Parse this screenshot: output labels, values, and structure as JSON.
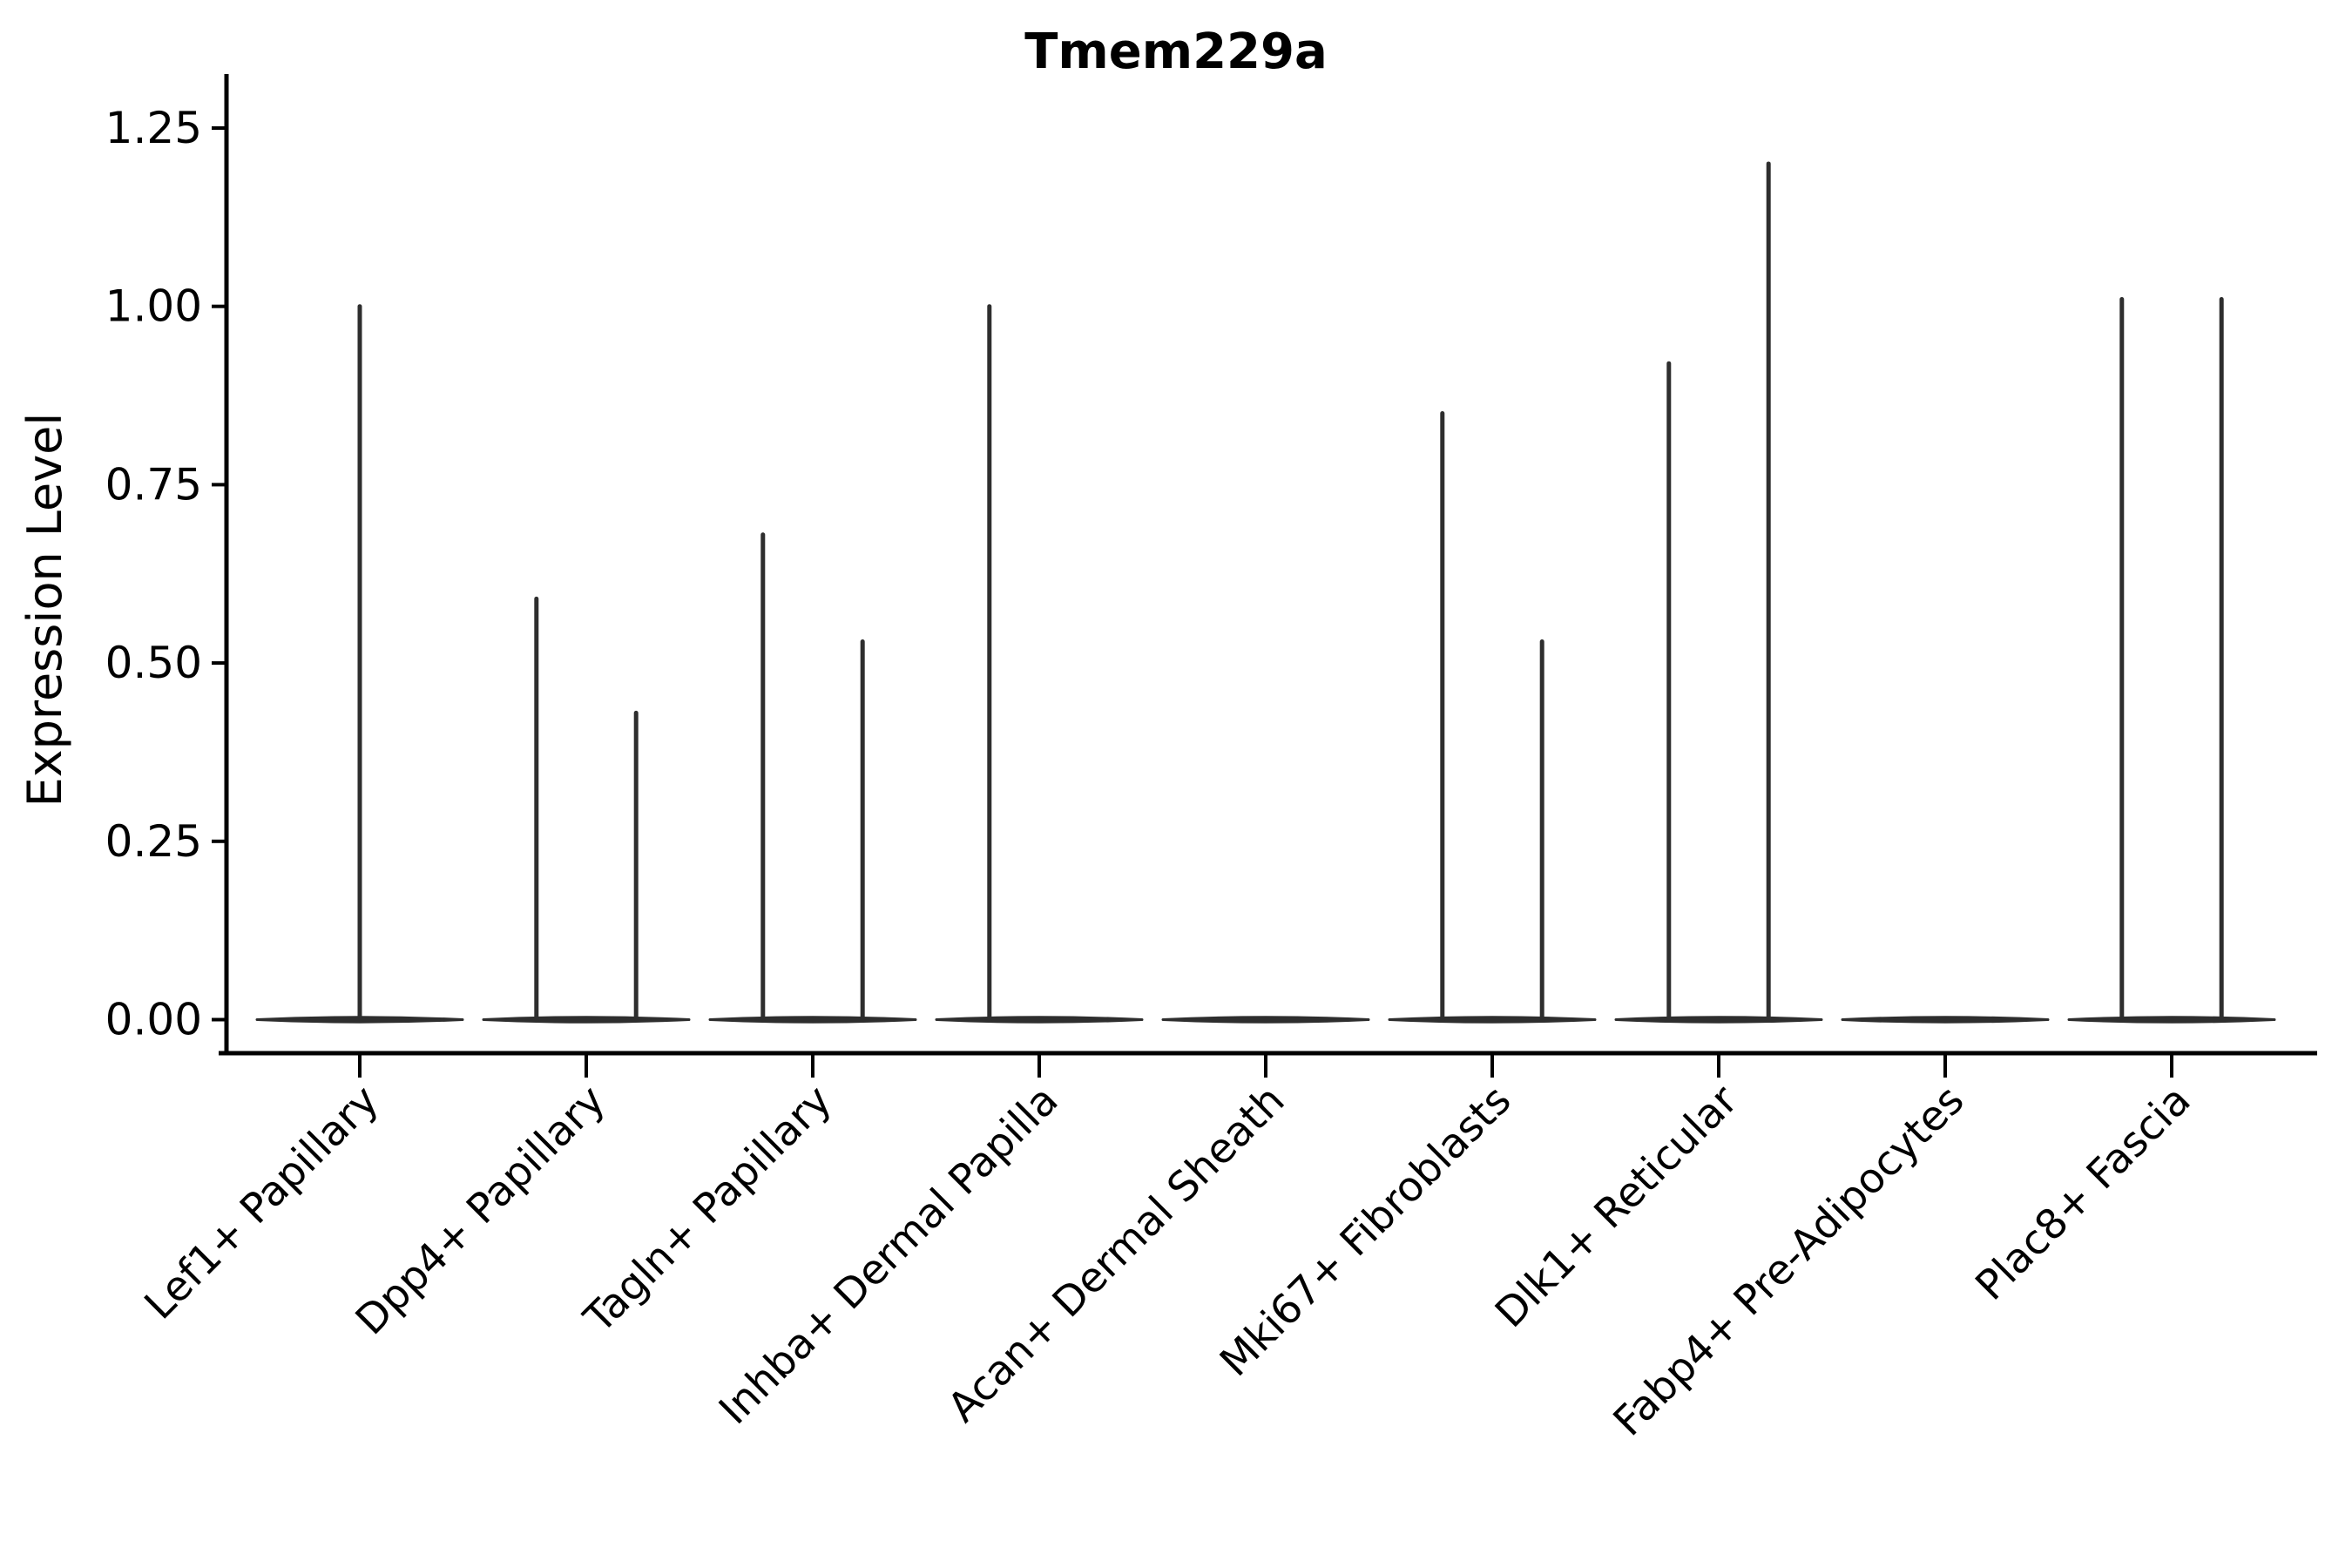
{
  "figure": {
    "title": "Tmem229a"
  },
  "colors": {
    "background": "#ffffff",
    "axis_ink": "#000000",
    "violin_stroke": "#2e2e2e"
  },
  "chart_data": {
    "type": "violin",
    "title": "Tmem229a",
    "xlabel": "",
    "ylabel": "Expression Level",
    "ylim": [
      0,
      1.25
    ],
    "grid": false,
    "legend": "none",
    "x_tick_rotation": 45,
    "ytick_labels": [
      "0.00",
      "0.25",
      "0.50",
      "0.75",
      "1.00",
      "1.25"
    ],
    "ytick_values": [
      0.0,
      0.25,
      0.5,
      0.75,
      1.0,
      1.25
    ],
    "categories": [
      "Lef1+ Papillary",
      "Dpp4+ Papillary",
      "Tagln+ Papillary",
      "Inhba+ Dermal Papilla",
      "Acan+ Dermal Sheath",
      "Mki67+ Fibroblasts",
      "Dlk1+ Reticular",
      "Fabp4+ Pre-Adipocytes",
      "Plac8+ Fascia"
    ],
    "violins": [
      {
        "category": "Lef1+ Papillary",
        "baseline_value": 0.0,
        "spikes": [
          {
            "offset_frac": 0.0,
            "peak": 1.0
          }
        ]
      },
      {
        "category": "Dpp4+ Papillary",
        "baseline_value": 0.0,
        "spikes": [
          {
            "offset_frac": -0.22,
            "peak": 0.59
          },
          {
            "offset_frac": 0.22,
            "peak": 0.43
          }
        ]
      },
      {
        "category": "Tagln+ Papillary",
        "baseline_value": 0.0,
        "spikes": [
          {
            "offset_frac": -0.22,
            "peak": 0.68
          },
          {
            "offset_frac": 0.22,
            "peak": 0.53
          }
        ]
      },
      {
        "category": "Inhba+ Dermal Papilla",
        "baseline_value": 0.0,
        "spikes": [
          {
            "offset_frac": -0.22,
            "peak": 1.0
          }
        ]
      },
      {
        "category": "Acan+ Dermal Sheath",
        "baseline_value": 0.0,
        "spikes": []
      },
      {
        "category": "Mki67+ Fibroblasts",
        "baseline_value": 0.0,
        "spikes": [
          {
            "offset_frac": -0.22,
            "peak": 0.85
          },
          {
            "offset_frac": 0.22,
            "peak": 0.53
          }
        ]
      },
      {
        "category": "Dlk1+ Reticular",
        "baseline_value": 0.0,
        "spikes": [
          {
            "offset_frac": -0.22,
            "peak": 0.92
          },
          {
            "offset_frac": 0.22,
            "peak": 1.2
          }
        ]
      },
      {
        "category": "Fabp4+ Pre-Adipocytes",
        "baseline_value": 0.0,
        "spikes": []
      },
      {
        "category": "Plac8+ Fascia",
        "baseline_value": 0.0,
        "spikes": [
          {
            "offset_frac": -0.22,
            "peak": 1.01
          },
          {
            "offset_frac": 0.22,
            "peak": 1.01
          }
        ]
      }
    ]
  }
}
